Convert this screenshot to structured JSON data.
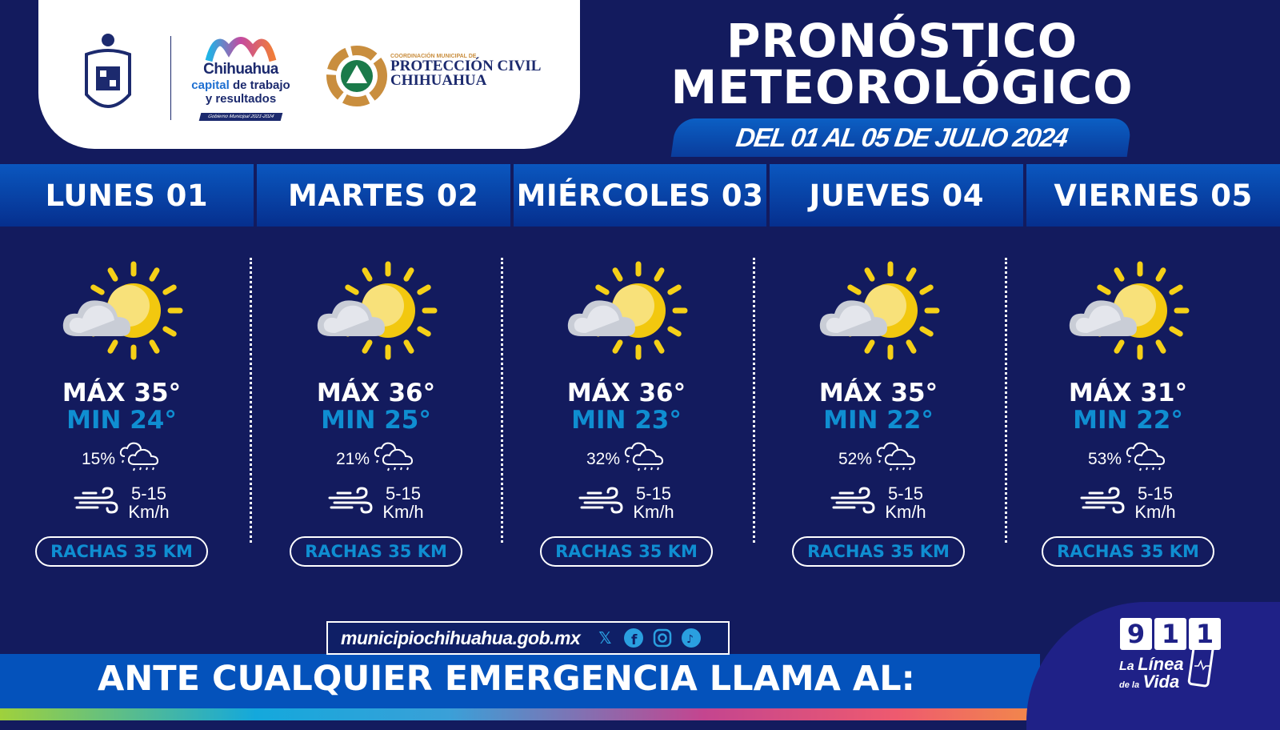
{
  "header": {
    "logos": {
      "coat_of_arms": "Escudo de Chihuahua",
      "brand_name": "Chihuahua",
      "brand_tagline_highlight": "capital",
      "brand_tagline_rest": " de trabajo",
      "brand_tagline_line2": "y resultados",
      "brand_footer": "Gobierno Municipal 2021-2024",
      "pc_small": "COORDINACIÓN MUNICIPAL DE",
      "pc_line1": "PROTECCIÓN CIVIL",
      "pc_line2": "CHIHUAHUA"
    },
    "title_line1": "PRONÓSTICO",
    "title_line2": "METEOROLÓGICO",
    "date_range": "DEL 01 AL 05 DE JULIO 2024"
  },
  "colors": {
    "background": "#131b5e",
    "accent_blue": "#0f8ed1",
    "header_blue": "#0a57bf"
  },
  "days": [
    {
      "label": "LUNES 01",
      "icon": "sun-behind-cloud-icon",
      "max": "MÁX 35°",
      "min": "MIN 24°",
      "rain": "15%",
      "wind": "5-15",
      "wind_unit": "Km/h",
      "gusts": "RACHAS 35 KM"
    },
    {
      "label": "MARTES 02",
      "icon": "sun-behind-cloud-icon",
      "max": "MÁX 36°",
      "min": "MIN 25°",
      "rain": "21%",
      "wind": "5-15",
      "wind_unit": "Km/h",
      "gusts": "RACHAS 35 KM"
    },
    {
      "label": "MIÉRCOLES 03",
      "icon": "sun-behind-cloud-icon",
      "max": "MÁX 36°",
      "min": "MIN 23°",
      "rain": "32%",
      "wind": "5-15",
      "wind_unit": "Km/h",
      "gusts": "RACHAS 35 KM"
    },
    {
      "label": "JUEVES 04",
      "icon": "sun-behind-cloud-icon",
      "max": "MÁX 35°",
      "min": "MIN 22°",
      "rain": "52%",
      "wind": "5-15",
      "wind_unit": "Km/h",
      "gusts": "RACHAS 35 KM"
    },
    {
      "label": "VIERNES 05",
      "icon": "sun-behind-cloud-icon",
      "max": "MÁX 31°",
      "min": "MIN 22°",
      "rain": "53%",
      "wind": "5-15",
      "wind_unit": "Km/h",
      "gusts": "RACHAS 35 KM"
    }
  ],
  "footer": {
    "website": "municipiochihuahua.gob.mx",
    "social": [
      "x-icon",
      "facebook-icon",
      "instagram-icon",
      "tiktok-icon"
    ],
    "emergency_text": "ANTE CUALQUIER EMERGENCIA LLAMA AL:",
    "emergency_number": [
      "9",
      "1",
      "1"
    ],
    "emergency_slogan_1": "La",
    "emergency_slogan_2": "Línea",
    "emergency_slogan_3": "de la",
    "emergency_slogan_4": "Vida"
  }
}
